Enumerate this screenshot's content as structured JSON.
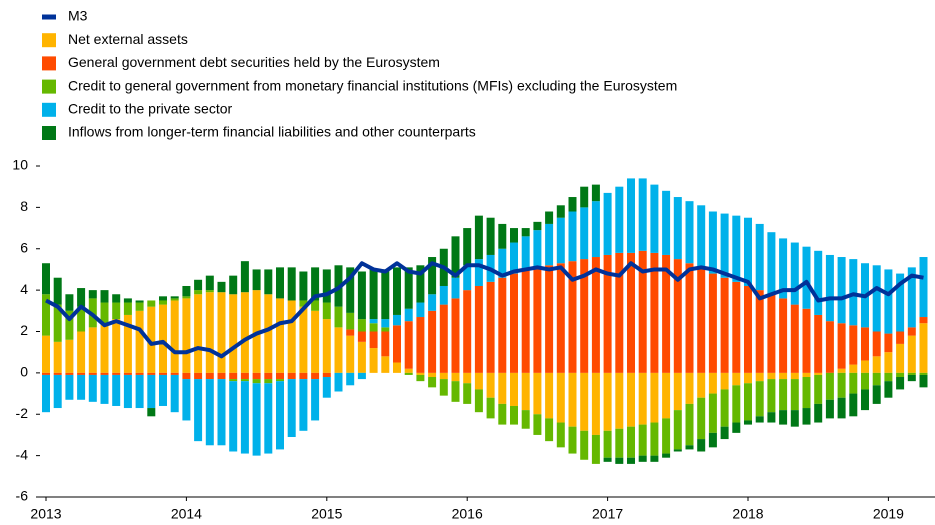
{
  "chart_data": {
    "type": "bar",
    "categories": [
      "2013",
      null,
      null,
      null,
      null,
      null,
      null,
      null,
      null,
      null,
      null,
      null,
      "2014",
      null,
      null,
      null,
      null,
      null,
      null,
      null,
      null,
      null,
      null,
      null,
      "2015",
      null,
      null,
      null,
      null,
      null,
      null,
      null,
      null,
      null,
      null,
      null,
      "2016",
      null,
      null,
      null,
      null,
      null,
      null,
      null,
      null,
      null,
      null,
      null,
      "2017",
      null,
      null,
      null,
      null,
      null,
      null,
      null,
      null,
      null,
      null,
      null,
      "2018",
      null,
      null,
      null,
      null,
      null,
      null,
      null,
      null,
      null,
      null,
      null,
      "2019",
      null,
      null,
      null
    ],
    "ylim": [
      -6,
      10
    ],
    "yticks": [
      -6,
      -4,
      -2,
      0,
      2,
      4,
      6,
      8,
      10
    ],
    "legend": "top-left",
    "series": [
      {
        "name": "M3",
        "type": "line",
        "color": "#003299",
        "values": [
          3.5,
          3.2,
          2.6,
          3.2,
          2.8,
          2.3,
          2.5,
          2.3,
          2.1,
          1.4,
          1.5,
          1.0,
          1.0,
          1.2,
          1.1,
          0.8,
          1.2,
          1.6,
          1.9,
          2.1,
          2.4,
          2.5,
          3.1,
          3.7,
          3.8,
          4.1,
          4.6,
          5.3,
          5.0,
          4.9,
          5.3,
          4.9,
          4.8,
          5.3,
          5.1,
          4.7,
          5.2,
          5.2,
          5.0,
          4.7,
          4.9,
          5.0,
          5.1,
          5.0,
          5.1,
          4.5,
          4.7,
          5.0,
          4.8,
          4.7,
          5.3,
          4.9,
          5.0,
          5.0,
          4.5,
          5.0,
          5.1,
          5.0,
          4.8,
          4.6,
          4.4,
          3.6,
          3.8,
          4.0,
          4.0,
          4.4,
          3.5,
          3.6,
          3.6,
          3.8,
          3.7,
          4.1,
          3.8,
          4.3,
          4.7,
          4.6
        ]
      },
      {
        "name": "Net external assets",
        "color": "#FFB400",
        "values": [
          1.8,
          1.5,
          1.6,
          2.0,
          2.2,
          2.4,
          2.6,
          2.8,
          3.0,
          3.2,
          3.3,
          3.5,
          3.6,
          3.8,
          3.9,
          3.9,
          3.8,
          3.9,
          4.0,
          3.8,
          3.6,
          3.5,
          3.2,
          3.0,
          2.6,
          2.2,
          1.8,
          1.5,
          1.2,
          0.8,
          0.5,
          0.2,
          -0.1,
          -0.2,
          -0.3,
          -0.4,
          -0.5,
          -0.8,
          -1.2,
          -1.5,
          -1.6,
          -1.8,
          -2.0,
          -2.2,
          -2.4,
          -2.6,
          -2.8,
          -3.0,
          -2.8,
          -2.7,
          -2.6,
          -2.5,
          -2.4,
          -2.2,
          -1.8,
          -1.5,
          -1.2,
          -1.0,
          -0.8,
          -0.6,
          -0.5,
          -0.4,
          -0.3,
          -0.3,
          -0.3,
          -0.2,
          -0.1,
          0.0,
          0.2,
          0.4,
          0.6,
          0.8,
          1.0,
          1.4,
          1.8,
          2.4
        ]
      },
      {
        "name": "General government debt securities held by the Eurosystem",
        "color": "#FF4B00",
        "values": [
          -0.1,
          -0.1,
          -0.1,
          -0.1,
          -0.1,
          -0.1,
          -0.1,
          -0.1,
          -0.1,
          -0.1,
          -0.1,
          -0.1,
          -0.3,
          -0.3,
          -0.3,
          -0.3,
          -0.3,
          -0.3,
          -0.3,
          -0.3,
          -0.3,
          -0.3,
          -0.3,
          -0.3,
          -0.2,
          0.0,
          0.3,
          0.5,
          0.8,
          1.2,
          1.8,
          2.3,
          2.7,
          3.0,
          3.3,
          3.6,
          4.0,
          4.2,
          4.4,
          4.6,
          4.8,
          5.0,
          5.1,
          5.2,
          5.3,
          5.4,
          5.5,
          5.6,
          5.7,
          5.8,
          5.8,
          5.9,
          5.8,
          5.7,
          5.5,
          5.3,
          5.0,
          4.8,
          4.6,
          4.4,
          4.2,
          4.0,
          3.8,
          3.6,
          3.3,
          3.1,
          2.8,
          2.5,
          2.2,
          1.9,
          1.6,
          1.2,
          0.9,
          0.6,
          0.4,
          0.3
        ]
      },
      {
        "name": "Credit to general government from monetary financial institutions (MFIs) excluding the Eurosystem",
        "color": "#65B800",
        "values": [
          2.0,
          1.8,
          1.4,
          1.2,
          1.4,
          1.0,
          0.8,
          0.6,
          0.4,
          0.3,
          0.2,
          0.1,
          0.1,
          0.2,
          0.1,
          0.0,
          -0.1,
          -0.1,
          -0.2,
          -0.2,
          -0.1,
          0.0,
          0.3,
          0.5,
          0.8,
          1.0,
          0.8,
          0.6,
          0.4,
          0.2,
          0.0,
          -0.1,
          -0.3,
          -0.5,
          -0.8,
          -1.0,
          -1.0,
          -1.1,
          -1.0,
          -1.0,
          -0.9,
          -0.9,
          -1.0,
          -1.1,
          -1.2,
          -1.3,
          -1.4,
          -1.4,
          -1.3,
          -1.4,
          -1.5,
          -1.5,
          -1.6,
          -1.7,
          -1.9,
          -2.0,
          -2.0,
          -1.9,
          -1.8,
          -1.8,
          -1.8,
          -1.7,
          -1.6,
          -1.5,
          -1.5,
          -1.5,
          -1.4,
          -1.3,
          -1.2,
          -1.0,
          -0.8,
          -0.6,
          -0.4,
          -0.2,
          -0.1,
          -0.1
        ]
      },
      {
        "name": "Credit to the private sector",
        "color": "#00B1EA",
        "values": [
          -1.8,
          -1.6,
          -1.2,
          -1.2,
          -1.3,
          -1.4,
          -1.5,
          -1.6,
          -1.6,
          -1.6,
          -1.5,
          -1.8,
          -2.0,
          -3.0,
          -3.2,
          -3.2,
          -3.4,
          -3.5,
          -3.5,
          -3.4,
          -3.3,
          -2.8,
          -2.5,
          -2.0,
          -1.0,
          -0.9,
          -0.6,
          -0.3,
          0.2,
          0.4,
          0.5,
          0.6,
          0.7,
          0.8,
          0.9,
          1.0,
          1.2,
          1.3,
          1.3,
          1.4,
          1.5,
          1.6,
          1.8,
          2.0,
          2.2,
          2.4,
          2.5,
          2.7,
          3.0,
          3.2,
          3.6,
          3.5,
          3.3,
          3.1,
          3.0,
          3.0,
          3.1,
          3.0,
          3.1,
          3.2,
          3.3,
          3.2,
          3.0,
          2.9,
          3.0,
          3.0,
          3.1,
          3.2,
          3.2,
          3.2,
          3.1,
          3.2,
          3.1,
          2.8,
          2.9,
          2.9
        ]
      },
      {
        "name": "Inflows from longer-term financial liabilities and other counterparts",
        "color": "#007816",
        "values": [
          1.5,
          1.3,
          0.8,
          0.9,
          0.4,
          0.6,
          0.4,
          0.2,
          0.1,
          -0.4,
          0.2,
          0.1,
          0.5,
          0.5,
          0.7,
          0.5,
          0.9,
          1.5,
          1.0,
          1.2,
          1.5,
          1.6,
          1.4,
          1.6,
          1.6,
          2.0,
          2.2,
          2.3,
          2.4,
          2.4,
          2.3,
          2.0,
          1.8,
          1.8,
          1.8,
          2.0,
          1.8,
          2.1,
          1.8,
          1.2,
          0.7,
          0.4,
          0.4,
          0.6,
          0.6,
          0.7,
          1.0,
          0.8,
          -0.2,
          -0.3,
          -0.3,
          -0.3,
          -0.3,
          -0.2,
          -0.1,
          -0.2,
          -0.6,
          -0.7,
          -0.6,
          -0.5,
          -0.2,
          -0.3,
          -0.5,
          -0.7,
          -0.8,
          -0.8,
          -0.9,
          -0.9,
          -1.0,
          -1.1,
          -1.0,
          -0.9,
          -0.8,
          -0.6,
          -0.3,
          -0.6
        ]
      }
    ]
  }
}
